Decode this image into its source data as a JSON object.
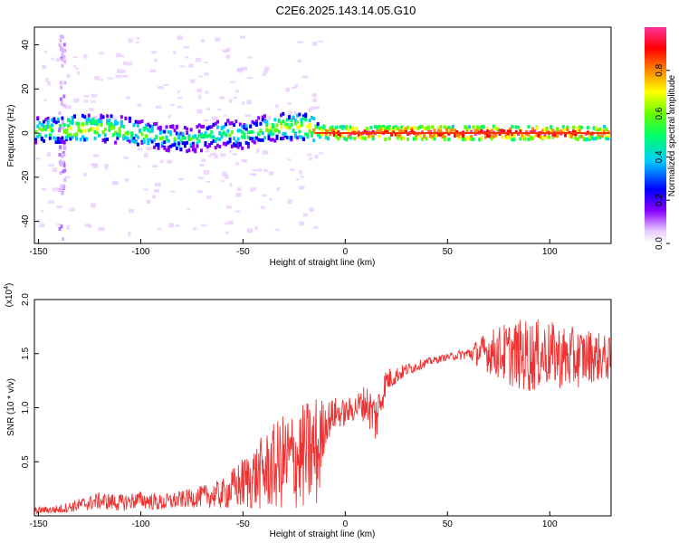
{
  "title": "C2E6.2025.143.14.05.G10",
  "chart_data": [
    {
      "type": "heatmap",
      "xlabel": "Height of straight line (km)",
      "ylabel": "Frequency (Hz)",
      "xlim": [
        -152,
        130
      ],
      "ylim": [
        -50,
        48
      ],
      "xticks": [
        "-150",
        "-100",
        "-50",
        "0",
        "50",
        "100"
      ],
      "yticks": [
        "-40",
        "-20",
        "0",
        "20",
        "40"
      ],
      "colorbar": {
        "label": "Normalized spectral amplitude",
        "ticks": [
          "0.0",
          "0.2",
          "0.4",
          "0.6",
          "0.8"
        ],
        "range": [
          0,
          1
        ],
        "colormap": "rainbow (violet-blue-cyan-green-yellow-orange-red-pink)"
      },
      "ridge": {
        "description_free": false,
        "points": [
          {
            "x": -150,
            "y": 1.5,
            "a": 0.55
          },
          {
            "x": -140,
            "y": 1.5,
            "a": 0.6
          },
          {
            "x": -130,
            "y": 2,
            "a": 0.7
          },
          {
            "x": -120,
            "y": 2,
            "a": 0.6
          },
          {
            "x": -110,
            "y": 1.5,
            "a": 0.6
          },
          {
            "x": -100,
            "y": 0,
            "a": 0.55
          },
          {
            "x": -90,
            "y": -2,
            "a": 0.5
          },
          {
            "x": -80,
            "y": -3,
            "a": 0.45
          },
          {
            "x": -70,
            "y": -2,
            "a": 0.45
          },
          {
            "x": -60,
            "y": 0,
            "a": 0.5
          },
          {
            "x": -50,
            "y": -1,
            "a": 0.5
          },
          {
            "x": -40,
            "y": 2,
            "a": 0.55
          },
          {
            "x": -30,
            "y": 3,
            "a": 0.6
          },
          {
            "x": -20,
            "y": 3,
            "a": 0.65
          },
          {
            "x": -10,
            "y": 0,
            "a": 0.85
          },
          {
            "x": 0,
            "y": 0,
            "a": 0.9
          },
          {
            "x": 25,
            "y": 0,
            "a": 0.95
          },
          {
            "x": 50,
            "y": 0,
            "a": 0.95
          },
          {
            "x": 75,
            "y": 0,
            "a": 0.95
          },
          {
            "x": 100,
            "y": 0,
            "a": 0.95
          },
          {
            "x": 130,
            "y": 0,
            "a": 0.85
          }
        ]
      }
    },
    {
      "type": "line",
      "xlabel": "Height of straight line (km)",
      "ylabel": "SNR (10 * v/v)",
      "yscale_label": "(x10",
      "yscale_exp": "4",
      "xlim": [
        -152,
        130
      ],
      "ylim": [
        0,
        2.0
      ],
      "xticks": [
        "-150",
        "-100",
        "-50",
        "0",
        "50",
        "100"
      ],
      "yticks": [
        "0.5",
        "1.0",
        "1.5",
        "2.0"
      ],
      "color": "#ee3333",
      "series": [
        {
          "x": [
            -152,
            -140,
            -130,
            -120,
            -110,
            -100,
            -90,
            -80,
            -70,
            -60,
            -50,
            -40,
            -30,
            -20,
            -13,
            -10,
            -5,
            0,
            5,
            10,
            15,
            20,
            25,
            30,
            40,
            50,
            60,
            70,
            80,
            90,
            100,
            110,
            120,
            130
          ],
          "values": [
            0.05,
            0.06,
            0.1,
            0.14,
            0.12,
            0.15,
            0.12,
            0.15,
            0.18,
            0.2,
            0.3,
            0.4,
            0.5,
            0.55,
            0.6,
            0.85,
            0.95,
            0.95,
            1.0,
            1.05,
            0.9,
            1.25,
            1.3,
            1.35,
            1.42,
            1.47,
            1.5,
            1.52,
            1.5,
            1.48,
            1.5,
            1.45,
            1.48,
            1.45
          ],
          "noise": [
            0.03,
            0.04,
            0.06,
            0.08,
            0.08,
            0.08,
            0.08,
            0.08,
            0.1,
            0.14,
            0.25,
            0.35,
            0.45,
            0.5,
            0.55,
            0.2,
            0.15,
            0.12,
            0.12,
            0.18,
            0.25,
            0.12,
            0.08,
            0.06,
            0.04,
            0.03,
            0.06,
            0.2,
            0.3,
            0.35,
            0.3,
            0.3,
            0.25,
            0.2
          ]
        }
      ]
    }
  ]
}
